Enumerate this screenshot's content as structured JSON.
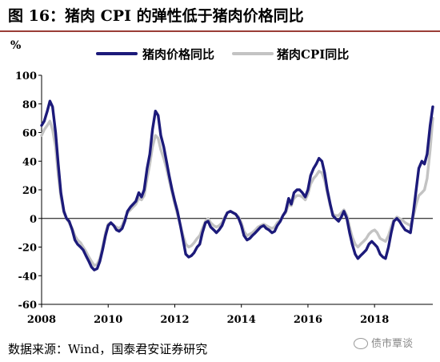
{
  "title": "图 16：猪肉 CPI 的弹性低于猪肉价格同比",
  "footer": "数据来源：Wind，国泰君安证券研究",
  "watermark": "债市覃谈",
  "chart_data": {
    "type": "line",
    "ylabel": "%",
    "xlabel": "",
    "ylim": [
      -60,
      100
    ],
    "yticks": [
      -60,
      -40,
      -20,
      0,
      20,
      40,
      60,
      80,
      100
    ],
    "xlim": [
      2008,
      2019.75
    ],
    "xticks": [
      2008,
      2010,
      2012,
      2014,
      2016,
      2018
    ],
    "legend_position": "top",
    "grid": false,
    "series": [
      {
        "name": "猪肉价格同比",
        "color": "#1c1a7a",
        "points": [
          [
            2008.0,
            65
          ],
          [
            2008.08,
            68
          ],
          [
            2008.17,
            75
          ],
          [
            2008.25,
            82
          ],
          [
            2008.33,
            78
          ],
          [
            2008.42,
            60
          ],
          [
            2008.5,
            38
          ],
          [
            2008.58,
            18
          ],
          [
            2008.67,
            5
          ],
          [
            2008.75,
            0
          ],
          [
            2008.83,
            -2
          ],
          [
            2008.92,
            -8
          ],
          [
            2009.0,
            -15
          ],
          [
            2009.08,
            -18
          ],
          [
            2009.17,
            -20
          ],
          [
            2009.25,
            -22
          ],
          [
            2009.33,
            -26
          ],
          [
            2009.42,
            -30
          ],
          [
            2009.5,
            -34
          ],
          [
            2009.58,
            -36
          ],
          [
            2009.67,
            -35
          ],
          [
            2009.75,
            -30
          ],
          [
            2009.83,
            -22
          ],
          [
            2009.92,
            -12
          ],
          [
            2010.0,
            -5
          ],
          [
            2010.08,
            -3
          ],
          [
            2010.17,
            -5
          ],
          [
            2010.25,
            -8
          ],
          [
            2010.33,
            -9
          ],
          [
            2010.42,
            -7
          ],
          [
            2010.5,
            -2
          ],
          [
            2010.58,
            5
          ],
          [
            2010.67,
            8
          ],
          [
            2010.75,
            10
          ],
          [
            2010.83,
            12
          ],
          [
            2010.92,
            18
          ],
          [
            2011.0,
            15
          ],
          [
            2011.08,
            20
          ],
          [
            2011.17,
            35
          ],
          [
            2011.25,
            45
          ],
          [
            2011.33,
            62
          ],
          [
            2011.42,
            75
          ],
          [
            2011.5,
            72
          ],
          [
            2011.58,
            58
          ],
          [
            2011.67,
            50
          ],
          [
            2011.75,
            40
          ],
          [
            2011.83,
            30
          ],
          [
            2011.92,
            20
          ],
          [
            2012.0,
            12
          ],
          [
            2012.08,
            5
          ],
          [
            2012.17,
            -5
          ],
          [
            2012.25,
            -15
          ],
          [
            2012.33,
            -25
          ],
          [
            2012.42,
            -27
          ],
          [
            2012.5,
            -26
          ],
          [
            2012.58,
            -24
          ],
          [
            2012.67,
            -20
          ],
          [
            2012.75,
            -18
          ],
          [
            2012.83,
            -10
          ],
          [
            2012.92,
            -3
          ],
          [
            2013.0,
            -2
          ],
          [
            2013.08,
            -6
          ],
          [
            2013.17,
            -8
          ],
          [
            2013.25,
            -10
          ],
          [
            2013.33,
            -8
          ],
          [
            2013.42,
            -5
          ],
          [
            2013.5,
            0
          ],
          [
            2013.58,
            4
          ],
          [
            2013.67,
            5
          ],
          [
            2013.75,
            4
          ],
          [
            2013.83,
            3
          ],
          [
            2013.92,
            0
          ],
          [
            2014.0,
            -5
          ],
          [
            2014.08,
            -12
          ],
          [
            2014.17,
            -15
          ],
          [
            2014.25,
            -14
          ],
          [
            2014.33,
            -12
          ],
          [
            2014.42,
            -10
          ],
          [
            2014.5,
            -8
          ],
          [
            2014.58,
            -6
          ],
          [
            2014.67,
            -5
          ],
          [
            2014.75,
            -7
          ],
          [
            2014.83,
            -8
          ],
          [
            2014.92,
            -10
          ],
          [
            2015.0,
            -9
          ],
          [
            2015.08,
            -5
          ],
          [
            2015.17,
            -2
          ],
          [
            2015.25,
            2
          ],
          [
            2015.33,
            5
          ],
          [
            2015.42,
            14
          ],
          [
            2015.5,
            10
          ],
          [
            2015.58,
            18
          ],
          [
            2015.67,
            20
          ],
          [
            2015.75,
            20
          ],
          [
            2015.83,
            18
          ],
          [
            2015.92,
            15
          ],
          [
            2016.0,
            20
          ],
          [
            2016.08,
            30
          ],
          [
            2016.17,
            35
          ],
          [
            2016.25,
            38
          ],
          [
            2016.33,
            42
          ],
          [
            2016.42,
            40
          ],
          [
            2016.5,
            32
          ],
          [
            2016.58,
            20
          ],
          [
            2016.67,
            10
          ],
          [
            2016.75,
            2
          ],
          [
            2016.83,
            0
          ],
          [
            2016.92,
            -2
          ],
          [
            2017.0,
            1
          ],
          [
            2017.08,
            5
          ],
          [
            2017.17,
            0
          ],
          [
            2017.25,
            -10
          ],
          [
            2017.33,
            -18
          ],
          [
            2017.42,
            -25
          ],
          [
            2017.5,
            -28
          ],
          [
            2017.58,
            -26
          ],
          [
            2017.67,
            -24
          ],
          [
            2017.75,
            -22
          ],
          [
            2017.83,
            -18
          ],
          [
            2017.92,
            -16
          ],
          [
            2018.0,
            -18
          ],
          [
            2018.08,
            -20
          ],
          [
            2018.17,
            -25
          ],
          [
            2018.25,
            -27
          ],
          [
            2018.33,
            -28
          ],
          [
            2018.42,
            -20
          ],
          [
            2018.5,
            -10
          ],
          [
            2018.58,
            -2
          ],
          [
            2018.67,
            0
          ],
          [
            2018.75,
            -2
          ],
          [
            2018.83,
            -5
          ],
          [
            2018.92,
            -8
          ],
          [
            2019.0,
            -9
          ],
          [
            2019.08,
            -10
          ],
          [
            2019.17,
            5
          ],
          [
            2019.25,
            20
          ],
          [
            2019.33,
            35
          ],
          [
            2019.42,
            40
          ],
          [
            2019.5,
            38
          ],
          [
            2019.58,
            45
          ],
          [
            2019.67,
            65
          ],
          [
            2019.75,
            78
          ]
        ]
      },
      {
        "name": "猪肉CPI同比",
        "color": "#c3c3c3",
        "points": [
          [
            2008.0,
            58
          ],
          [
            2008.08,
            62
          ],
          [
            2008.17,
            65
          ],
          [
            2008.25,
            68
          ],
          [
            2008.33,
            62
          ],
          [
            2008.42,
            50
          ],
          [
            2008.5,
            30
          ],
          [
            2008.58,
            15
          ],
          [
            2008.67,
            4
          ],
          [
            2008.75,
            0
          ],
          [
            2008.83,
            -3
          ],
          [
            2008.92,
            -7
          ],
          [
            2009.0,
            -12
          ],
          [
            2009.08,
            -15
          ],
          [
            2009.17,
            -17
          ],
          [
            2009.25,
            -20
          ],
          [
            2009.33,
            -23
          ],
          [
            2009.42,
            -27
          ],
          [
            2009.5,
            -30
          ],
          [
            2009.58,
            -33
          ],
          [
            2009.67,
            -32
          ],
          [
            2009.75,
            -28
          ],
          [
            2009.83,
            -20
          ],
          [
            2009.92,
            -10
          ],
          [
            2010.0,
            -4
          ],
          [
            2010.08,
            -3
          ],
          [
            2010.17,
            -5
          ],
          [
            2010.25,
            -6
          ],
          [
            2010.33,
            -7
          ],
          [
            2010.42,
            -5
          ],
          [
            2010.5,
            0
          ],
          [
            2010.58,
            4
          ],
          [
            2010.67,
            6
          ],
          [
            2010.75,
            8
          ],
          [
            2010.83,
            10
          ],
          [
            2010.92,
            14
          ],
          [
            2011.0,
            13
          ],
          [
            2011.08,
            16
          ],
          [
            2011.17,
            28
          ],
          [
            2011.25,
            38
          ],
          [
            2011.33,
            50
          ],
          [
            2011.42,
            58
          ],
          [
            2011.5,
            56
          ],
          [
            2011.58,
            48
          ],
          [
            2011.67,
            42
          ],
          [
            2011.75,
            35
          ],
          [
            2011.83,
            27
          ],
          [
            2011.92,
            18
          ],
          [
            2012.0,
            10
          ],
          [
            2012.08,
            3
          ],
          [
            2012.17,
            -5
          ],
          [
            2012.25,
            -12
          ],
          [
            2012.33,
            -18
          ],
          [
            2012.42,
            -20
          ],
          [
            2012.5,
            -19
          ],
          [
            2012.58,
            -17
          ],
          [
            2012.67,
            -14
          ],
          [
            2012.75,
            -12
          ],
          [
            2012.83,
            -7
          ],
          [
            2012.92,
            -2
          ],
          [
            2013.0,
            0
          ],
          [
            2013.08,
            -3
          ],
          [
            2013.17,
            -5
          ],
          [
            2013.25,
            -6
          ],
          [
            2013.33,
            -5
          ],
          [
            2013.42,
            -3
          ],
          [
            2013.5,
            1
          ],
          [
            2013.58,
            4
          ],
          [
            2013.67,
            5
          ],
          [
            2013.75,
            4
          ],
          [
            2013.83,
            3
          ],
          [
            2013.92,
            1
          ],
          [
            2014.0,
            -3
          ],
          [
            2014.08,
            -9
          ],
          [
            2014.17,
            -12
          ],
          [
            2014.25,
            -11
          ],
          [
            2014.33,
            -10
          ],
          [
            2014.42,
            -8
          ],
          [
            2014.5,
            -6
          ],
          [
            2014.58,
            -5
          ],
          [
            2014.67,
            -4
          ],
          [
            2014.75,
            -5
          ],
          [
            2014.83,
            -6
          ],
          [
            2014.92,
            -7
          ],
          [
            2015.0,
            -6
          ],
          [
            2015.08,
            -3
          ],
          [
            2015.17,
            -1
          ],
          [
            2015.25,
            2
          ],
          [
            2015.33,
            4
          ],
          [
            2015.42,
            10
          ],
          [
            2015.5,
            9
          ],
          [
            2015.58,
            14
          ],
          [
            2015.67,
            16
          ],
          [
            2015.75,
            16
          ],
          [
            2015.83,
            15
          ],
          [
            2015.92,
            13
          ],
          [
            2016.0,
            17
          ],
          [
            2016.08,
            24
          ],
          [
            2016.17,
            28
          ],
          [
            2016.25,
            30
          ],
          [
            2016.33,
            33
          ],
          [
            2016.42,
            32
          ],
          [
            2016.5,
            27
          ],
          [
            2016.58,
            18
          ],
          [
            2016.67,
            9
          ],
          [
            2016.75,
            3
          ],
          [
            2016.83,
            2
          ],
          [
            2016.92,
            2
          ],
          [
            2017.0,
            4
          ],
          [
            2017.08,
            6
          ],
          [
            2017.17,
            2
          ],
          [
            2017.25,
            -6
          ],
          [
            2017.33,
            -13
          ],
          [
            2017.42,
            -18
          ],
          [
            2017.5,
            -20
          ],
          [
            2017.58,
            -18
          ],
          [
            2017.67,
            -16
          ],
          [
            2017.75,
            -14
          ],
          [
            2017.83,
            -11
          ],
          [
            2017.92,
            -9
          ],
          [
            2018.0,
            -8
          ],
          [
            2018.08,
            -10
          ],
          [
            2018.17,
            -14
          ],
          [
            2018.25,
            -15
          ],
          [
            2018.33,
            -16
          ],
          [
            2018.42,
            -12
          ],
          [
            2018.5,
            -6
          ],
          [
            2018.58,
            -1
          ],
          [
            2018.67,
            1
          ],
          [
            2018.75,
            0
          ],
          [
            2018.83,
            -1
          ],
          [
            2018.92,
            -3
          ],
          [
            2019.0,
            -4
          ],
          [
            2019.08,
            -5
          ],
          [
            2019.17,
            2
          ],
          [
            2019.25,
            10
          ],
          [
            2019.33,
            16
          ],
          [
            2019.42,
            18
          ],
          [
            2019.5,
            20
          ],
          [
            2019.58,
            28
          ],
          [
            2019.67,
            48
          ],
          [
            2019.75,
            70
          ]
        ]
      }
    ]
  }
}
